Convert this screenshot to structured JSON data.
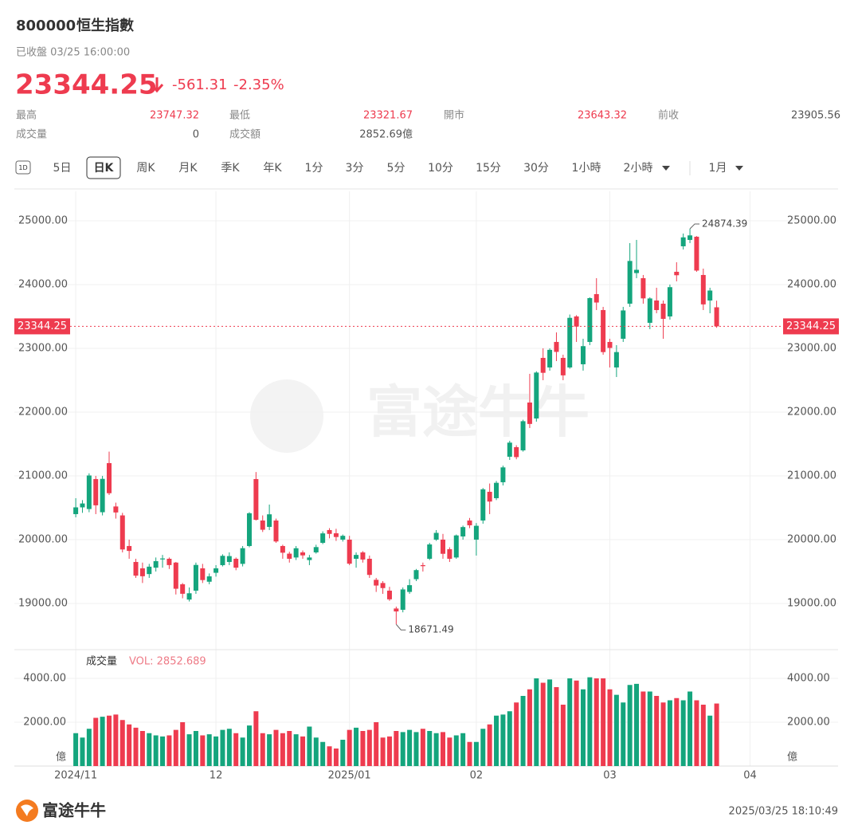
{
  "quote": {
    "code": "800000",
    "name": "恒生指數",
    "status": "已收盤 03/25 16:00:00",
    "price": "23344.25",
    "change": "-561.31",
    "change_pct": "-2.35%",
    "stats": [
      [
        "最高",
        "23747.32"
      ],
      [
        "最低",
        "23321.67"
      ],
      [
        "開市",
        "23643.32"
      ],
      [
        "前收",
        "23905.56"
      ],
      [
        "成交量",
        "0"
      ],
      [
        "成交額",
        "2852.69億"
      ]
    ]
  },
  "tab_icon": "1D",
  "tabs": [
    "5日",
    "日K",
    "周K",
    "月K",
    "季K",
    "年K",
    "1分",
    "3分",
    "5分",
    "10分",
    "15分",
    "30分",
    "1小時",
    "2小時",
    "1月"
  ],
  "selected_tab": 1,
  "chart_data": {
    "type": "candlestick",
    "up_color": "#14a57d",
    "down_color": "#ee3b4f",
    "grid": true,
    "last_price_line": true,
    "watermark": "富途牛牛",
    "xlim": [
      -9.2,
      105
    ],
    "xticks": [
      {
        "value": 0,
        "label": "2024/11"
      },
      {
        "value": 21,
        "label": "12"
      },
      {
        "value": 41,
        "label": "2025/01"
      },
      {
        "value": 60,
        "label": "02"
      },
      {
        "value": 80,
        "label": "03"
      },
      {
        "value": 101,
        "label": "04"
      }
    ],
    "ylim": [
      18312,
      25462
    ],
    "yticks": [
      {
        "value": 19000,
        "label": "19000.00"
      },
      {
        "value": 20000,
        "label": "20000.00"
      },
      {
        "value": 21000,
        "label": "21000.00"
      },
      {
        "value": 22000,
        "label": "22000.00"
      },
      {
        "value": 23000,
        "label": "23000.00"
      },
      {
        "value": 24000,
        "label": "24000.00"
      },
      {
        "value": 25000,
        "label": "25000.00"
      }
    ],
    "ohlc": [
      [
        20400,
        20650,
        20350,
        20506
      ],
      [
        20506,
        20620,
        20420,
        20567
      ],
      [
        20480,
        21040,
        20430,
        21006
      ],
      [
        20950,
        21000,
        20400,
        20538
      ],
      [
        20430,
        21000,
        20380,
        20953
      ],
      [
        21200,
        21380,
        20700,
        20728
      ],
      [
        20520,
        20580,
        20330,
        20426
      ],
      [
        20380,
        20420,
        19800,
        19846
      ],
      [
        19900,
        20000,
        19700,
        19823
      ],
      [
        19650,
        19700,
        19400,
        19435
      ],
      [
        19550,
        19640,
        19320,
        19426
      ],
      [
        19460,
        19620,
        19400,
        19576
      ],
      [
        19560,
        19720,
        19500,
        19663
      ],
      [
        19690,
        19760,
        19560,
        19705
      ],
      [
        19700,
        19720,
        19540,
        19601
      ],
      [
        19640,
        19650,
        19140,
        19230
      ],
      [
        19300,
        19320,
        19080,
        19151
      ],
      [
        19060,
        19250,
        19030,
        19159
      ],
      [
        19200,
        19640,
        19150,
        19603
      ],
      [
        19550,
        19620,
        19320,
        19366
      ],
      [
        19340,
        19470,
        19300,
        19424
      ],
      [
        19480,
        19600,
        19420,
        19550
      ],
      [
        19600,
        19770,
        19580,
        19746
      ],
      [
        19650,
        19800,
        19600,
        19742
      ],
      [
        19700,
        19720,
        19520,
        19560
      ],
      [
        19620,
        19900,
        19580,
        19866
      ],
      [
        19900,
        20430,
        19880,
        20414
      ],
      [
        20950,
        21060,
        20300,
        20311
      ],
      [
        20300,
        20380,
        20120,
        20155
      ],
      [
        20200,
        20550,
        20150,
        20397
      ],
      [
        20300,
        20330,
        19950,
        19971
      ],
      [
        19900,
        19920,
        19700,
        19795
      ],
      [
        19780,
        19810,
        19640,
        19700
      ],
      [
        19720,
        19900,
        19680,
        19865
      ],
      [
        19800,
        19830,
        19700,
        19753
      ],
      [
        19680,
        19760,
        19600,
        19720
      ],
      [
        19800,
        19920,
        19780,
        19883
      ],
      [
        19950,
        20130,
        19930,
        20098
      ],
      [
        20150,
        20180,
        20020,
        20090
      ],
      [
        20100,
        20170,
        19980,
        20041
      ],
      [
        20000,
        20080,
        19970,
        20060
      ],
      [
        20000,
        20060,
        19600,
        19623
      ],
      [
        19700,
        19800,
        19560,
        19760
      ],
      [
        19800,
        19820,
        19640,
        19688
      ],
      [
        19700,
        19750,
        19400,
        19447
      ],
      [
        19370,
        19400,
        19180,
        19280
      ],
      [
        19320,
        19350,
        19150,
        19240
      ],
      [
        19200,
        19260,
        19040,
        19064
      ],
      [
        18920,
        18950,
        18671.49,
        18874
      ],
      [
        18900,
        19250,
        18860,
        19219
      ],
      [
        19180,
        19380,
        19150,
        19286
      ],
      [
        19380,
        19540,
        19350,
        19522
      ],
      [
        19600,
        19640,
        19500,
        19584
      ],
      [
        19700,
        19950,
        19680,
        19925
      ],
      [
        20000,
        20150,
        19980,
        20106
      ],
      [
        20000,
        20090,
        19700,
        19778
      ],
      [
        19850,
        19880,
        19650,
        19700
      ],
      [
        19720,
        20080,
        19700,
        20066
      ],
      [
        20050,
        20220,
        20000,
        20197
      ],
      [
        20300,
        20340,
        20180,
        20225
      ],
      [
        20000,
        20260,
        19750,
        20217
      ],
      [
        20300,
        20810,
        20250,
        20789
      ],
      [
        20750,
        20880,
        20400,
        20597
      ],
      [
        20650,
        20920,
        20620,
        20891
      ],
      [
        20900,
        21160,
        20850,
        21133
      ],
      [
        21300,
        21550,
        21250,
        21521
      ],
      [
        21450,
        21480,
        21260,
        21294
      ],
      [
        21400,
        21880,
        21380,
        21857
      ],
      [
        22150,
        22600,
        21750,
        21814
      ],
      [
        21900,
        22640,
        21850,
        22620
      ],
      [
        22850,
        23000,
        22500,
        22616
      ],
      [
        22700,
        23000,
        22650,
        22976
      ],
      [
        23100,
        23250,
        22800,
        22944
      ],
      [
        22850,
        22900,
        22500,
        22576
      ],
      [
        22700,
        23530,
        22680,
        23478
      ],
      [
        23500,
        23520,
        23100,
        23341
      ],
      [
        22750,
        23150,
        22650,
        23034
      ],
      [
        23100,
        23800,
        23050,
        23787
      ],
      [
        23850,
        24100,
        23600,
        23718
      ],
      [
        23600,
        23650,
        22900,
        22941
      ],
      [
        23100,
        23150,
        22700,
        23006
      ],
      [
        22700,
        23050,
        22550,
        22941
      ],
      [
        23150,
        23650,
        23100,
        23594
      ],
      [
        23700,
        24650,
        23650,
        24370
      ],
      [
        24180,
        24700,
        24100,
        24231
      ],
      [
        24100,
        24150,
        23700,
        23783
      ],
      [
        23400,
        23800,
        23300,
        23782
      ],
      [
        23750,
        23950,
        23550,
        23600
      ],
      [
        23700,
        23750,
        23150,
        23462
      ],
      [
        23500,
        24000,
        23450,
        23959
      ],
      [
        24200,
        24350,
        24050,
        24146
      ],
      [
        24600,
        24800,
        24550,
        24740
      ],
      [
        24700,
        24874.39,
        24650,
        24771
      ],
      [
        24750,
        24760,
        24200,
        24219
      ],
      [
        24150,
        24250,
        23600,
        23689
      ],
      [
        23750,
        23950,
        23550,
        23906
      ],
      [
        23643.32,
        23747.32,
        23321.67,
        23344.25
      ]
    ],
    "volume": {
      "type": "bar",
      "title": "成交量",
      "legend": "VOL: 2852.689",
      "unit": "億",
      "ylim": [
        0,
        5200
      ],
      "yticks": [
        {
          "value": 2000,
          "label": "2000.00"
        },
        {
          "value": 4000,
          "label": "4000.00"
        }
      ],
      "values": [
        1500,
        1300,
        1700,
        2200,
        2250,
        2300,
        2350,
        2100,
        1900,
        1750,
        1600,
        1500,
        1400,
        1350,
        1400,
        1650,
        2000,
        1450,
        1600,
        1400,
        1450,
        1350,
        1650,
        1700,
        1500,
        1300,
        1850,
        2500,
        1500,
        1450,
        1650,
        1500,
        1600,
        1450,
        1350,
        1800,
        1300,
        1100,
        900,
        800,
        1200,
        1650,
        1750,
        1600,
        1650,
        2000,
        1300,
        1350,
        1600,
        1550,
        1650,
        1550,
        1700,
        1600,
        1500,
        1550,
        1300,
        1400,
        1500,
        1100,
        1100,
        1700,
        1900,
        2300,
        2350,
        2500,
        2900,
        3200,
        3500,
        4000,
        3800,
        3950,
        3600,
        2800,
        4000,
        3900,
        3500,
        4050,
        4000,
        4000,
        3500,
        3250,
        2900,
        3700,
        3750,
        3400,
        3400,
        3200,
        2900,
        3000,
        3100,
        3000,
        3400,
        3000,
        2800,
        2300,
        2852.689
      ]
    }
  },
  "footer": {
    "brand": "富途牛牛",
    "timestamp": "2025/03/25 18:10:49"
  }
}
